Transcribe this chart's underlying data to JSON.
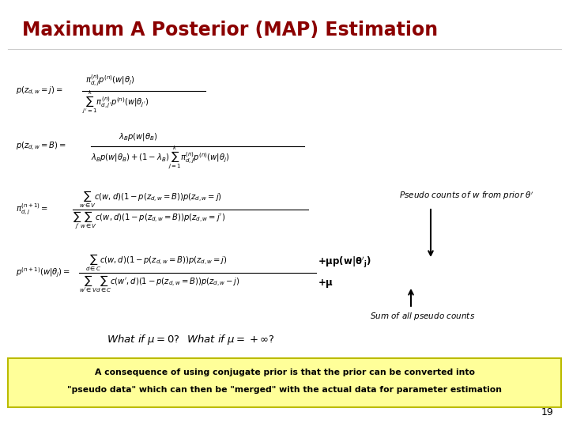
{
  "title": "Maximum A Posterior (MAP) Estimation",
  "title_color": "#8B0000",
  "bg_color": "#FFFFFF",
  "pseudo_label": "Pseudo counts of w from prior $\\theta'$",
  "sum_label": "Sum of all pseudo counts",
  "bottom_text1": "A consequence of using conjugate prior is that the prior can be converted into",
  "bottom_text2": "\"pseudo data\" which can then be \"merged\" with the actual data for parameter estimation",
  "page_num": "19",
  "bottom_bg": "#FFFF99",
  "eq1_lhs": "$p(z_{d,w} = j) = $",
  "eq1_num": "$\\pi_{d,j}^{(n)}p^{(n)}(w|\\theta_j)$",
  "eq1_den": "$\\sum_{j'=1}^{k}\\pi_{d,j'}^{(n)}p^{(n)}(w|\\theta_{j'})$",
  "eq2_lhs": "$p(z_{d,w} = B) = $",
  "eq2_num": "$\\lambda_B p(w|\\theta_B)$",
  "eq2_den": "$\\lambda_B p(w|\\theta_B) + (1-\\lambda_B)\\sum_{j=1}^{k}\\pi_{d,j}^{(n)}p^{(n)}(w|\\theta_j)$",
  "eq3_lhs": "$\\pi_{d,j}^{(n+1)} = $",
  "eq3_num": "$\\sum_{w\\in V}c(w,d)(1-p(z_{d,w}=B))p(z_{d,w}=j)$",
  "eq3_den": "$\\sum_{j'}\\sum_{w\\in V}c(w,d)(1-p(z_{d,w}=B))p(z_{d,w}=j')$",
  "eq4_lhs": "$p^{(n+1)}(w|\\theta_j) = $",
  "eq4_num": "$\\sum_{d\\in C}c(w,d)(1-p(z_{d,w}=B))p(z_{d,w}=j)$",
  "eq4_den": "$\\sum_{w'\\in V}\\sum_{d\\in C}c(w',d)(1-p(z_{d,w}=B))p(z_{d,w}-j)$",
  "eq4_num_extra": "$+\\mu p(w|\\theta'_j)$",
  "eq4_den_extra": "$+\\mu$",
  "what_if": "What if $\\mu$=0?  What if $\\mu$=+$\\infty$?"
}
